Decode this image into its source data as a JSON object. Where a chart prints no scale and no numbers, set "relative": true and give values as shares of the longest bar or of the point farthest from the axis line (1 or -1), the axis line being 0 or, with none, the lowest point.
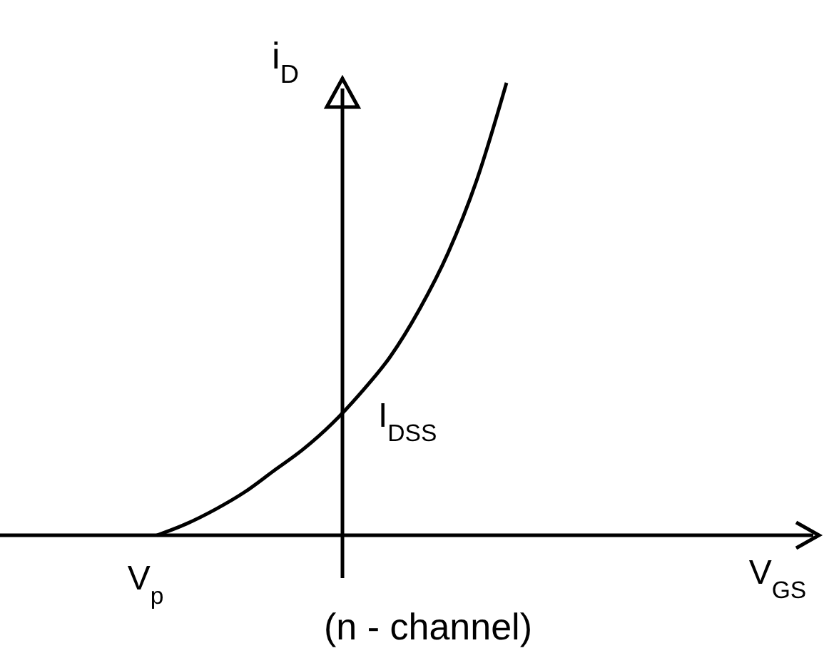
{
  "chart_data": {
    "type": "line",
    "relative": true,
    "ylabel": "i$_{D}$",
    "categories": [
      null,
      null,
      null,
      null,
      null,
      null,
      null,
      null,
      null,
      null,
      null,
      null,
      null
    ],
    "series": [
      {
        "color": "#000000",
        "values": [
          0,
          0.025,
          0.057,
          0.095,
          0.142,
          0.189,
          0.246,
          0.315,
          0.394,
          0.498,
          0.625,
          0.789,
          1
        ]
      }
    ],
    "annotations": [
      "V$_{p}$",
      "I$_{DSS}$",
      "(n - channel)",
      "V$_{GS}$"
    ],
    "marker": "none",
    "line_style": "solid"
  }
}
